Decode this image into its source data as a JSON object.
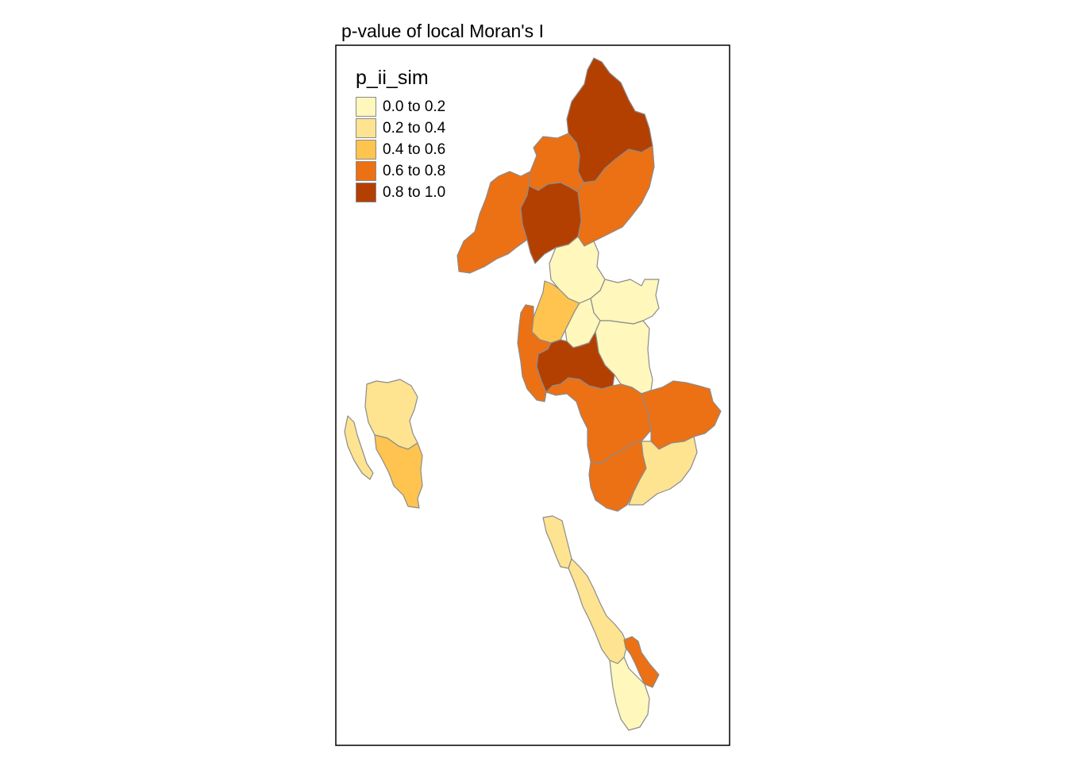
{
  "map": {
    "title": "p-value of local Moran's I"
  },
  "legend": {
    "title": "p_ii_sim",
    "items": [
      {
        "label": "0.0 to 0.2",
        "color": "#fff7bc",
        "class": 0
      },
      {
        "label": "0.2 to 0.4",
        "color": "#fee391",
        "class": 1
      },
      {
        "label": "0.4 to 0.6",
        "color": "#fec44f",
        "class": 2
      },
      {
        "label": "0.6 to 0.8",
        "color": "#ec7014",
        "class": 3
      },
      {
        "label": "0.8 to 1.0",
        "color": "#b34000",
        "class": 4
      }
    ]
  },
  "style": {
    "region_border": "#8c8c8c",
    "frame_border": "#000000"
  },
  "regions": [
    {
      "id": "r01",
      "class": 4
    },
    {
      "id": "r02",
      "class": 3
    },
    {
      "id": "r03",
      "class": 3
    },
    {
      "id": "r04",
      "class": 3
    },
    {
      "id": "r05",
      "class": 4
    },
    {
      "id": "r06",
      "class": 0
    },
    {
      "id": "r07",
      "class": 0
    },
    {
      "id": "r08",
      "class": 2
    },
    {
      "id": "r09",
      "class": 0
    },
    {
      "id": "r10",
      "class": 0
    },
    {
      "id": "r11",
      "class": 3
    },
    {
      "id": "r12",
      "class": 4
    },
    {
      "id": "r13",
      "class": 3
    },
    {
      "id": "r14",
      "class": 3
    },
    {
      "id": "r15",
      "class": 3
    },
    {
      "id": "r16",
      "class": 1
    },
    {
      "id": "r17",
      "class": 1
    },
    {
      "id": "r18",
      "class": 1
    },
    {
      "id": "r19",
      "class": 2
    },
    {
      "id": "r20",
      "class": 1
    },
    {
      "id": "r21",
      "class": 1
    },
    {
      "id": "r22",
      "class": 3
    },
    {
      "id": "r23",
      "class": 0
    }
  ]
}
